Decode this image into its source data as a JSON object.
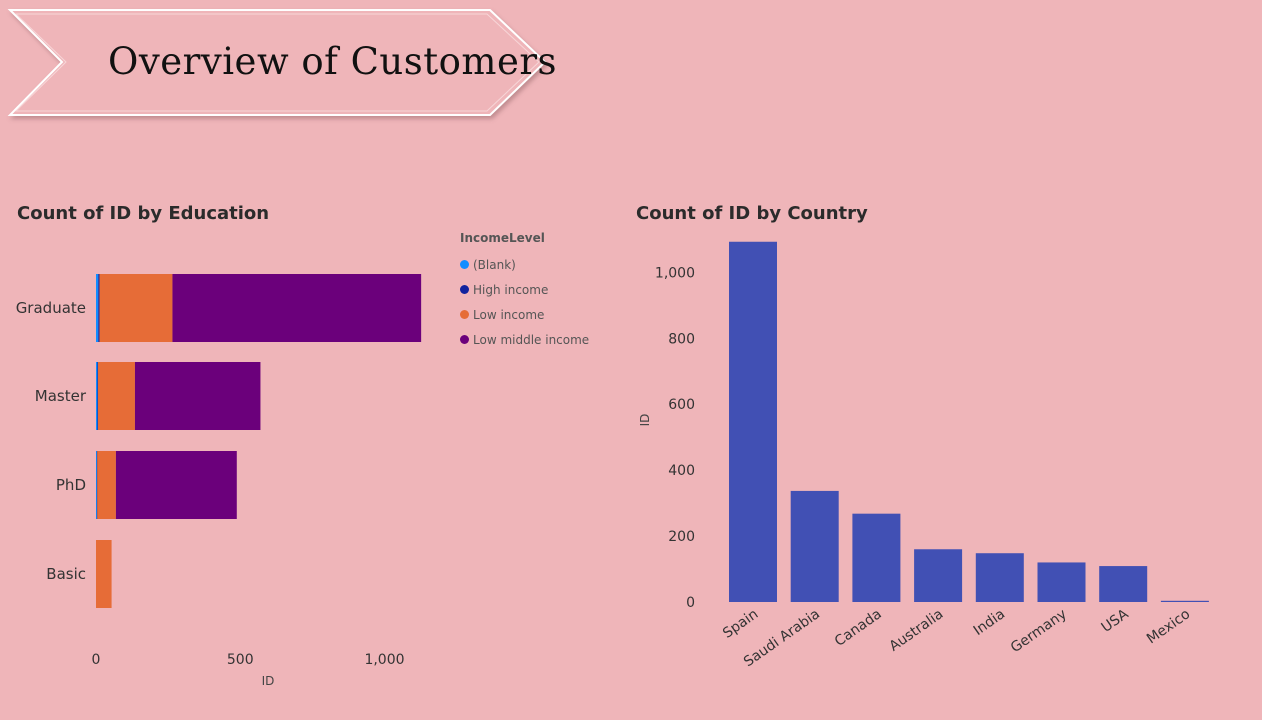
{
  "banner": {
    "title": "Overview of Customers"
  },
  "charts": {
    "education_title": "Count of ID by Education",
    "country_title": "Count of ID by Country"
  },
  "legend": {
    "title": "IncomeLevel",
    "items": [
      {
        "label": "(Blank)",
        "color": "#118dff"
      },
      {
        "label": "High income",
        "color": "#12239e"
      },
      {
        "label": "Low income",
        "color": "#e66c37"
      },
      {
        "label": "Low middle income",
        "color": "#6b007b"
      }
    ]
  },
  "chart_data": [
    {
      "type": "bar",
      "orientation": "horizontal",
      "stacked": true,
      "title": "Count of ID by Education",
      "xlabel": "ID",
      "ylabel": "",
      "categories": [
        "Graduate",
        "Master",
        "PhD",
        "Basic"
      ],
      "series": [
        {
          "name": "(Blank)",
          "color": "#118dff",
          "values": [
            8,
            5,
            3,
            0
          ]
        },
        {
          "name": "High income",
          "color": "#12239e",
          "values": [
            4,
            2,
            1,
            0
          ]
        },
        {
          "name": "Low income",
          "color": "#e66c37",
          "values": [
            253,
            128,
            65,
            54
          ]
        },
        {
          "name": "Low middle income",
          "color": "#6b007b",
          "values": [
            862,
            435,
            419,
            0
          ]
        }
      ],
      "xlim": [
        0,
        1150
      ],
      "xticks": [
        0,
        500,
        1000
      ],
      "xtick_labels": [
        "0",
        "500",
        "1,000"
      ],
      "legend_position": "right",
      "grid": false
    },
    {
      "type": "bar",
      "title": "Count of ID by Country",
      "xlabel": "",
      "ylabel": "ID",
      "categories": [
        "Spain",
        "Saudi Arabia",
        "Canada",
        "Australia",
        "India",
        "Germany",
        "USA",
        "Mexico"
      ],
      "values": [
        1093,
        337,
        268,
        160,
        148,
        120,
        109,
        3
      ],
      "color": "#4150b4",
      "ylim": [
        0,
        1100
      ],
      "yticks": [
        0,
        200,
        400,
        600,
        800,
        1000
      ],
      "ytick_labels": [
        "0",
        "200",
        "400",
        "600",
        "800",
        "1,000"
      ],
      "grid": false
    }
  ]
}
